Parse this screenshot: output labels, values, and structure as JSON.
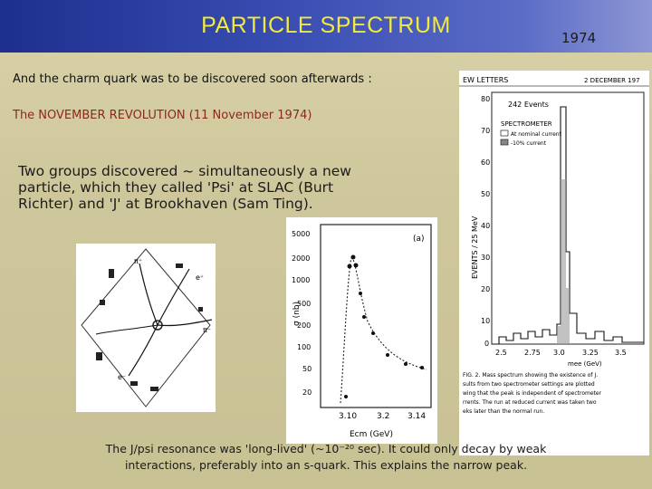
{
  "slide": {
    "title": "PARTICLE SPECTRUM",
    "year": "1974",
    "line1": "And the charm quark was to be discovered soon afterwards :",
    "line2": "The NOVEMBER REVOLUTION (11 November 1974)",
    "paragraph": "Two groups discovered ~ simultaneously a new particle, which they called 'Psi' at SLAC (Burt Richter) and 'J' at Brookhaven (Sam Ting).",
    "caption_line1": "The J/psi resonance was 'long-lived' (~10⁻²⁰ sec). It could only decay by weak",
    "caption_line2": "interactions, preferably into an s-quark. This explains the narrow peak."
  },
  "cross_section_plot": {
    "panel_label": "(a)",
    "ylabel": "σ (nb)",
    "xlabel": "Ecm (GeV)",
    "y_ticks": [
      "5000",
      "2000",
      "1000",
      "500",
      "200",
      "100",
      "50",
      "20"
    ],
    "x_ticks": [
      "3.10",
      "3.2",
      "3.14"
    ]
  },
  "histogram_plot": {
    "header_left": "EW LETTERS",
    "header_right": "2 DECEMBER 197",
    "events_label": "242 Events",
    "spectrometer_label": "SPECTROMETER",
    "legend_a": "At nominal current",
    "legend_b": "-10% current",
    "ylabel": "EVENTS / 25 MeV",
    "xlabel": "mee (GeV)",
    "y_ticks": [
      "80",
      "70",
      "60",
      "50",
      "40",
      "30",
      "20",
      "10",
      "0"
    ],
    "x_ticks": [
      "2.5",
      "2.75",
      "3.0",
      "3.25",
      "3.5"
    ],
    "figure_caption": [
      "FIG. 2. Mass spectrum showing the existence of J.",
      "sults from two spectrometer settings are plotted",
      "wing that the peak is independent of spectrometer",
      "rrents. The run at reduced current was taken two",
      "eks later than the normal run."
    ]
  }
}
